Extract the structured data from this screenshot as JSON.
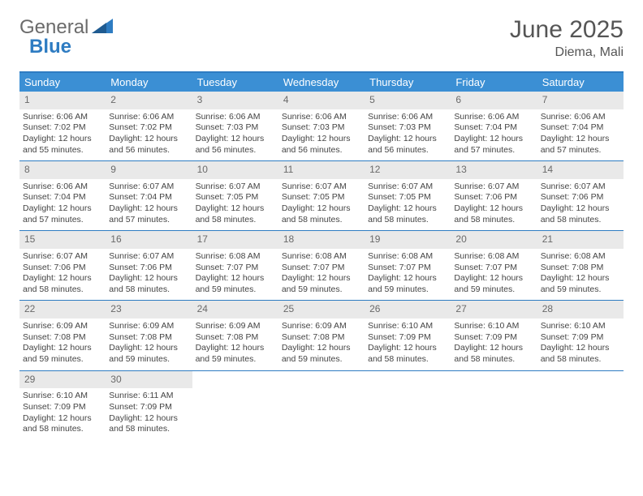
{
  "logo": {
    "part1": "General",
    "part2": "Blue"
  },
  "title": "June 2025",
  "location": "Diema, Mali",
  "colors": {
    "header_bg": "#3b8fd4",
    "border": "#2e7cc2",
    "daynum_bg": "#e9e9e9",
    "text": "#444444",
    "muted": "#6a6a6a"
  },
  "weekdays": [
    "Sunday",
    "Monday",
    "Tuesday",
    "Wednesday",
    "Thursday",
    "Friday",
    "Saturday"
  ],
  "weeks": [
    [
      {
        "n": "1",
        "sr": "Sunrise: 6:06 AM",
        "ss": "Sunset: 7:02 PM",
        "d1": "Daylight: 12 hours",
        "d2": "and 55 minutes."
      },
      {
        "n": "2",
        "sr": "Sunrise: 6:06 AM",
        "ss": "Sunset: 7:02 PM",
        "d1": "Daylight: 12 hours",
        "d2": "and 56 minutes."
      },
      {
        "n": "3",
        "sr": "Sunrise: 6:06 AM",
        "ss": "Sunset: 7:03 PM",
        "d1": "Daylight: 12 hours",
        "d2": "and 56 minutes."
      },
      {
        "n": "4",
        "sr": "Sunrise: 6:06 AM",
        "ss": "Sunset: 7:03 PM",
        "d1": "Daylight: 12 hours",
        "d2": "and 56 minutes."
      },
      {
        "n": "5",
        "sr": "Sunrise: 6:06 AM",
        "ss": "Sunset: 7:03 PM",
        "d1": "Daylight: 12 hours",
        "d2": "and 56 minutes."
      },
      {
        "n": "6",
        "sr": "Sunrise: 6:06 AM",
        "ss": "Sunset: 7:04 PM",
        "d1": "Daylight: 12 hours",
        "d2": "and 57 minutes."
      },
      {
        "n": "7",
        "sr": "Sunrise: 6:06 AM",
        "ss": "Sunset: 7:04 PM",
        "d1": "Daylight: 12 hours",
        "d2": "and 57 minutes."
      }
    ],
    [
      {
        "n": "8",
        "sr": "Sunrise: 6:06 AM",
        "ss": "Sunset: 7:04 PM",
        "d1": "Daylight: 12 hours",
        "d2": "and 57 minutes."
      },
      {
        "n": "9",
        "sr": "Sunrise: 6:07 AM",
        "ss": "Sunset: 7:04 PM",
        "d1": "Daylight: 12 hours",
        "d2": "and 57 minutes."
      },
      {
        "n": "10",
        "sr": "Sunrise: 6:07 AM",
        "ss": "Sunset: 7:05 PM",
        "d1": "Daylight: 12 hours",
        "d2": "and 58 minutes."
      },
      {
        "n": "11",
        "sr": "Sunrise: 6:07 AM",
        "ss": "Sunset: 7:05 PM",
        "d1": "Daylight: 12 hours",
        "d2": "and 58 minutes."
      },
      {
        "n": "12",
        "sr": "Sunrise: 6:07 AM",
        "ss": "Sunset: 7:05 PM",
        "d1": "Daylight: 12 hours",
        "d2": "and 58 minutes."
      },
      {
        "n": "13",
        "sr": "Sunrise: 6:07 AM",
        "ss": "Sunset: 7:06 PM",
        "d1": "Daylight: 12 hours",
        "d2": "and 58 minutes."
      },
      {
        "n": "14",
        "sr": "Sunrise: 6:07 AM",
        "ss": "Sunset: 7:06 PM",
        "d1": "Daylight: 12 hours",
        "d2": "and 58 minutes."
      }
    ],
    [
      {
        "n": "15",
        "sr": "Sunrise: 6:07 AM",
        "ss": "Sunset: 7:06 PM",
        "d1": "Daylight: 12 hours",
        "d2": "and 58 minutes."
      },
      {
        "n": "16",
        "sr": "Sunrise: 6:07 AM",
        "ss": "Sunset: 7:06 PM",
        "d1": "Daylight: 12 hours",
        "d2": "and 58 minutes."
      },
      {
        "n": "17",
        "sr": "Sunrise: 6:08 AM",
        "ss": "Sunset: 7:07 PM",
        "d1": "Daylight: 12 hours",
        "d2": "and 59 minutes."
      },
      {
        "n": "18",
        "sr": "Sunrise: 6:08 AM",
        "ss": "Sunset: 7:07 PM",
        "d1": "Daylight: 12 hours",
        "d2": "and 59 minutes."
      },
      {
        "n": "19",
        "sr": "Sunrise: 6:08 AM",
        "ss": "Sunset: 7:07 PM",
        "d1": "Daylight: 12 hours",
        "d2": "and 59 minutes."
      },
      {
        "n": "20",
        "sr": "Sunrise: 6:08 AM",
        "ss": "Sunset: 7:07 PM",
        "d1": "Daylight: 12 hours",
        "d2": "and 59 minutes."
      },
      {
        "n": "21",
        "sr": "Sunrise: 6:08 AM",
        "ss": "Sunset: 7:08 PM",
        "d1": "Daylight: 12 hours",
        "d2": "and 59 minutes."
      }
    ],
    [
      {
        "n": "22",
        "sr": "Sunrise: 6:09 AM",
        "ss": "Sunset: 7:08 PM",
        "d1": "Daylight: 12 hours",
        "d2": "and 59 minutes."
      },
      {
        "n": "23",
        "sr": "Sunrise: 6:09 AM",
        "ss": "Sunset: 7:08 PM",
        "d1": "Daylight: 12 hours",
        "d2": "and 59 minutes."
      },
      {
        "n": "24",
        "sr": "Sunrise: 6:09 AM",
        "ss": "Sunset: 7:08 PM",
        "d1": "Daylight: 12 hours",
        "d2": "and 59 minutes."
      },
      {
        "n": "25",
        "sr": "Sunrise: 6:09 AM",
        "ss": "Sunset: 7:08 PM",
        "d1": "Daylight: 12 hours",
        "d2": "and 59 minutes."
      },
      {
        "n": "26",
        "sr": "Sunrise: 6:10 AM",
        "ss": "Sunset: 7:09 PM",
        "d1": "Daylight: 12 hours",
        "d2": "and 58 minutes."
      },
      {
        "n": "27",
        "sr": "Sunrise: 6:10 AM",
        "ss": "Sunset: 7:09 PM",
        "d1": "Daylight: 12 hours",
        "d2": "and 58 minutes."
      },
      {
        "n": "28",
        "sr": "Sunrise: 6:10 AM",
        "ss": "Sunset: 7:09 PM",
        "d1": "Daylight: 12 hours",
        "d2": "and 58 minutes."
      }
    ],
    [
      {
        "n": "29",
        "sr": "Sunrise: 6:10 AM",
        "ss": "Sunset: 7:09 PM",
        "d1": "Daylight: 12 hours",
        "d2": "and 58 minutes."
      },
      {
        "n": "30",
        "sr": "Sunrise: 6:11 AM",
        "ss": "Sunset: 7:09 PM",
        "d1": "Daylight: 12 hours",
        "d2": "and 58 minutes."
      },
      null,
      null,
      null,
      null,
      null
    ]
  ]
}
